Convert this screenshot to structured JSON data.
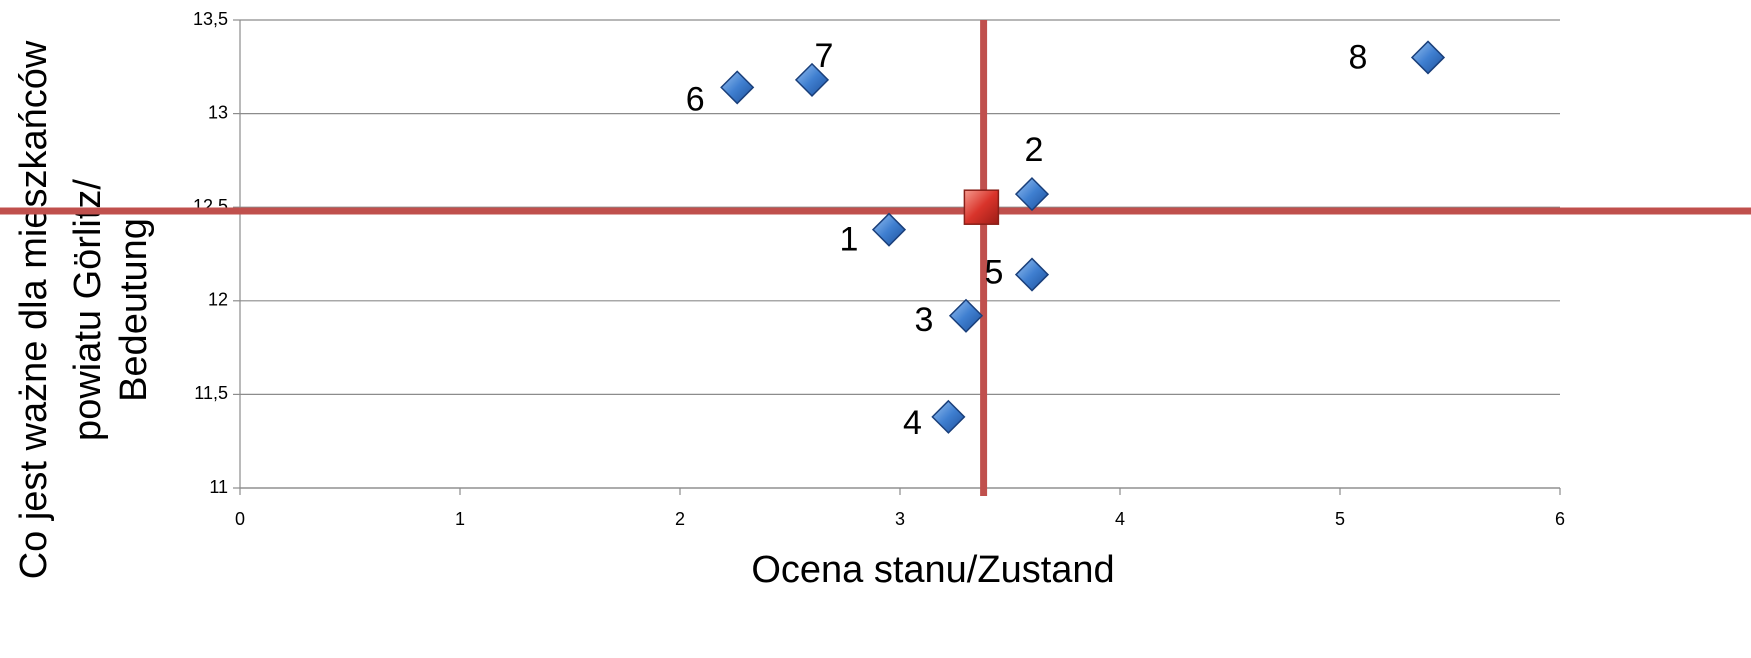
{
  "chart_data": {
    "type": "scatter",
    "xlabel": "Ocena stanu/Zustand",
    "ylabel": [
      "Co jest ważne dla mieszkańców",
      "powiatu Görlitz/",
      "Bedeutung"
    ],
    "xlim": [
      0,
      6
    ],
    "xticks": [
      0,
      1,
      2,
      3,
      4,
      5,
      6
    ],
    "ylim": [
      11,
      13.5
    ],
    "yticks": [
      11,
      {
        "value": 11.5,
        "label": "11,5"
      },
      12,
      {
        "value": 12.5,
        "label": "12,5"
      },
      13,
      {
        "value": 13.5,
        "label": "13,5"
      }
    ],
    "grid": true,
    "series": [
      {
        "marker": "diamond",
        "color": "#3f7fd0",
        "labels": [
          "1",
          "2",
          "3",
          "4",
          "5",
          "6",
          "7",
          "8"
        ],
        "x": [
          2.95,
          3.6,
          3.3,
          3.22,
          3.6,
          2.26,
          2.6,
          5.4
        ],
        "values": [
          12.38,
          12.57,
          11.92,
          11.38,
          12.14,
          13.14,
          13.18,
          13.3
        ]
      },
      {
        "marker": "square",
        "color": "#d9342b",
        "x": [
          3.37
        ],
        "values": [
          12.5
        ]
      }
    ],
    "reference_lines": {
      "x": 3.38,
      "y": 12.48,
      "color": "#c0504d"
    }
  }
}
